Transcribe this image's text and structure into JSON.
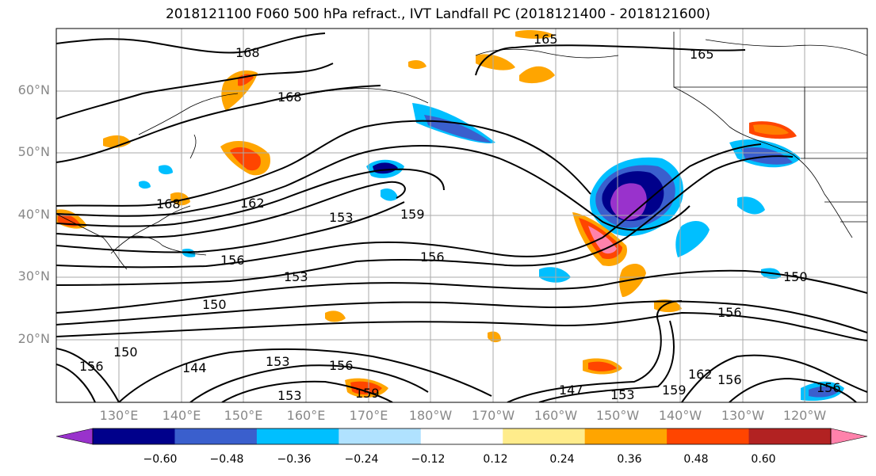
{
  "title": "2018121100 F060 500 hPa refract., IVT Landfall PC (2018121400 - 2018121600)",
  "lat_labels": [
    "60°N",
    "50°N",
    "40°N",
    "30°N",
    "20°N"
  ],
  "lon_labels": [
    "130°E",
    "140°E",
    "150°E",
    "160°E",
    "170°E",
    "180°W",
    "170°W",
    "160°W",
    "150°W",
    "140°W",
    "130°W",
    "120°W"
  ],
  "colorbar": {
    "ticks": [
      "−0.60",
      "−0.48",
      "−0.36",
      "−0.24",
      "−0.12",
      "0.12",
      "0.24",
      "0.36",
      "0.48",
      "0.60"
    ],
    "colors": [
      "#9932cc",
      "#00008b",
      "#3a5fcd",
      "#00bfff",
      "#b0e2ff",
      "#ffffff",
      "#ffec8b",
      "#ffa500",
      "#ff4500",
      "#b22222",
      "#ff82ab"
    ]
  },
  "contour_labels": [
    "168",
    "168",
    "168",
    "165",
    "165",
    "162",
    "159",
    "156",
    "156",
    "153",
    "153",
    "150",
    "150",
    "156",
    "147",
    "153",
    "159",
    "162",
    "156",
    "153",
    "156",
    "150",
    "144",
    "156",
    "153",
    "159",
    "156"
  ]
}
